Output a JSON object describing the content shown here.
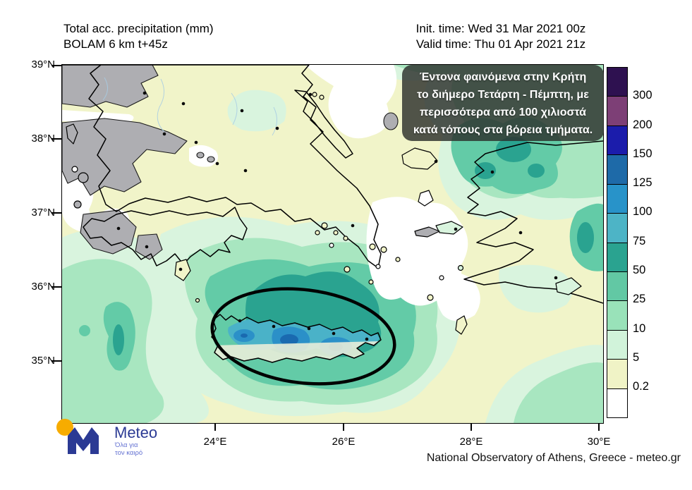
{
  "title": {
    "line1": "Total acc. precipitation (mm)",
    "line2": "BOLAM 6 km t+45z"
  },
  "run_info": {
    "init_time": "Init. time: Wed 31 Mar 2021 00z",
    "valid_time": "Valid time: Thu 01 Apr 2021 21z"
  },
  "annotation": {
    "lines": [
      "Έντονα φαινόμενα στην Κρήτη",
      "το διήμερο Τετάρτη - Πέμπτη, με",
      "περισσότερα από 100 χιλιοστά",
      "κατά τόπους στα βόρεια τμήματα."
    ]
  },
  "axes": {
    "lat_ticks": [
      "39°N",
      "38°N",
      "37°N",
      "36°N",
      "35°N"
    ],
    "lon_ticks": [
      "24°E",
      "26°E",
      "28°E",
      "30°E"
    ]
  },
  "legend": {
    "labels": [
      "300",
      "200",
      "150",
      "125",
      "100",
      "75",
      "50",
      "25",
      "10",
      "5",
      "0.2"
    ],
    "colors": [
      "#2e1150",
      "#7d3f76",
      "#1b1cab",
      "#1e6aa8",
      "#2893c9",
      "#4db4c6",
      "#2aa390",
      "#62c8a4",
      "#99e2b9",
      "#d1f3da",
      "#f0f3c6",
      "#ffffff"
    ],
    "nodata_color": "#aeaeb2",
    "sea_base_color": "#f1f4c9"
  },
  "branding": {
    "logo_text": "Meteo",
    "tagline_line1": "Όλα για",
    "tagline_line2": "τον καιρό",
    "logo_blue": "#2b3a94",
    "logo_yellow": "#f7ac00"
  },
  "footer": {
    "attribution": "National Observatory of Athens, Greece - meteo.gr"
  }
}
